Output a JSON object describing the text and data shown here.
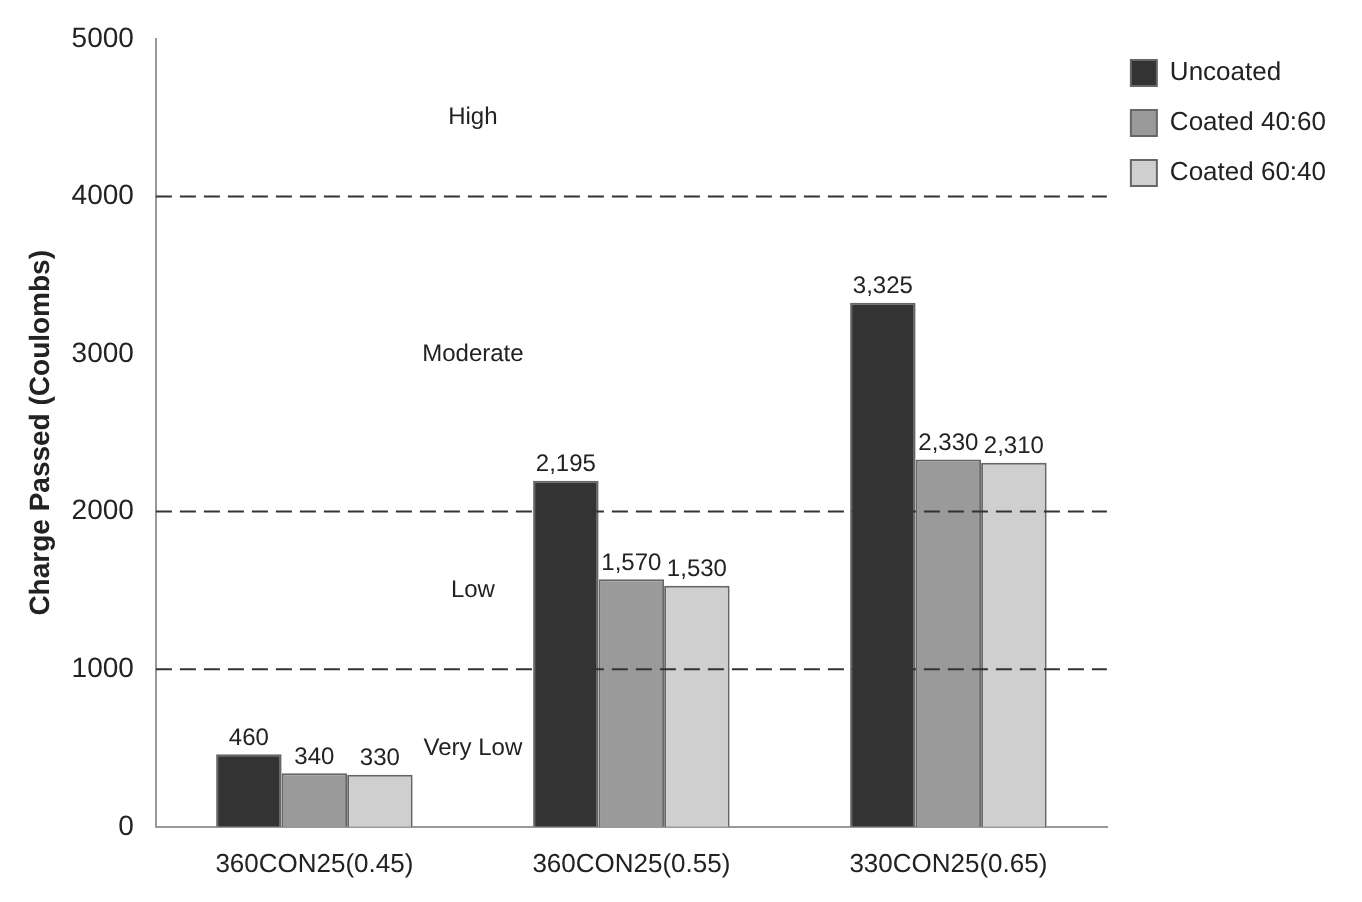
{
  "chart_data": {
    "type": "bar",
    "ylabel": "Charge Passed (Coulombs)",
    "categories": [
      "360CON25(0.45)",
      "360CON25(0.55)",
      "330CON25(0.65)"
    ],
    "series": [
      {
        "name": "Uncoated",
        "color": "#333333",
        "values": [
          460,
          2195,
          3325
        ],
        "value_labels": [
          "460",
          "2,195",
          "3,325"
        ]
      },
      {
        "name": "Coated 40:60",
        "color": "#9a9a9a",
        "values": [
          340,
          1570,
          2330
        ],
        "value_labels": [
          "340",
          "1,570",
          "2,330"
        ]
      },
      {
        "name": "Coated 60:40",
        "color": "#cfcfcf",
        "values": [
          330,
          1530,
          2310
        ],
        "value_labels": [
          "330",
          "1,530",
          "2,310"
        ]
      }
    ],
    "ylim": [
      0,
      5000
    ],
    "yticks": [
      0,
      1000,
      2000,
      3000,
      4000,
      5000
    ],
    "grid": false,
    "legend": "top right",
    "ref_lines": [
      {
        "axis": "y",
        "value": 4000,
        "color": "#333333",
        "line_style": "dashed"
      },
      {
        "axis": "y",
        "value": 2000,
        "color": "#333333",
        "line_style": "dashed"
      },
      {
        "axis": "y",
        "value": 1000,
        "color": "#333333",
        "line_style": "dashed"
      }
    ],
    "annotations": [
      "High",
      "Moderate",
      "Low",
      "Very Low"
    ]
  }
}
